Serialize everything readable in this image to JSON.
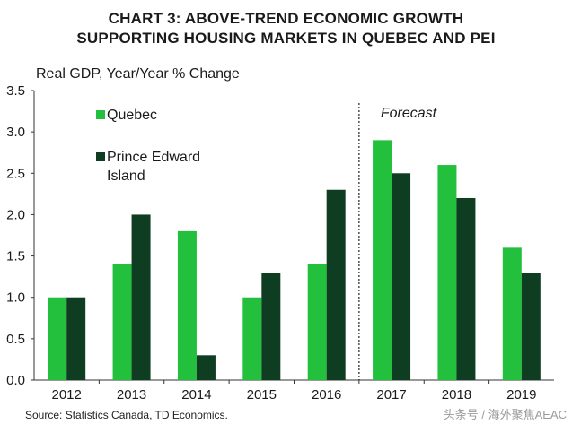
{
  "title_lines": [
    "CHART 3: ABOVE-TREND ECONOMIC GROWTH",
    "SUPPORTING HOUSING MARKETS IN QUEBEC AND PEI"
  ],
  "source": "Source: Statistics Canada, TD Economics.",
  "watermark": "头条号 / 海外聚焦AEAC",
  "chart_data": {
    "type": "bar",
    "title": "CHART 3: ABOVE-TREND ECONOMIC GROWTH SUPPORTING HOUSING MARKETS IN QUEBEC AND PEI",
    "ylabel": "Real GDP, Year/Year % Change",
    "xlabel": "",
    "ylim": [
      0,
      3.5
    ],
    "yticks": [
      "0.0",
      "0.5",
      "1.0",
      "1.5",
      "2.0",
      "2.5",
      "3.0",
      "3.5"
    ],
    "categories": [
      "2012",
      "2013",
      "2014",
      "2015",
      "2016",
      "2017",
      "2018",
      "2019"
    ],
    "series": [
      {
        "name": "Quebec",
        "color": "#22c03c",
        "values": [
          1.0,
          1.4,
          1.8,
          1.0,
          1.4,
          2.9,
          2.6,
          1.6
        ]
      },
      {
        "name": "Prince Edward Island",
        "name_lines": [
          "Prince Edward",
          "Island"
        ],
        "color": "#0f3d22",
        "values": [
          1.0,
          2.0,
          0.3,
          1.3,
          2.3,
          2.5,
          2.2,
          1.3
        ]
      }
    ],
    "annotations": [
      {
        "text": "Forecast",
        "before_category": "2017"
      }
    ],
    "grid": false,
    "legend": "top-left"
  }
}
